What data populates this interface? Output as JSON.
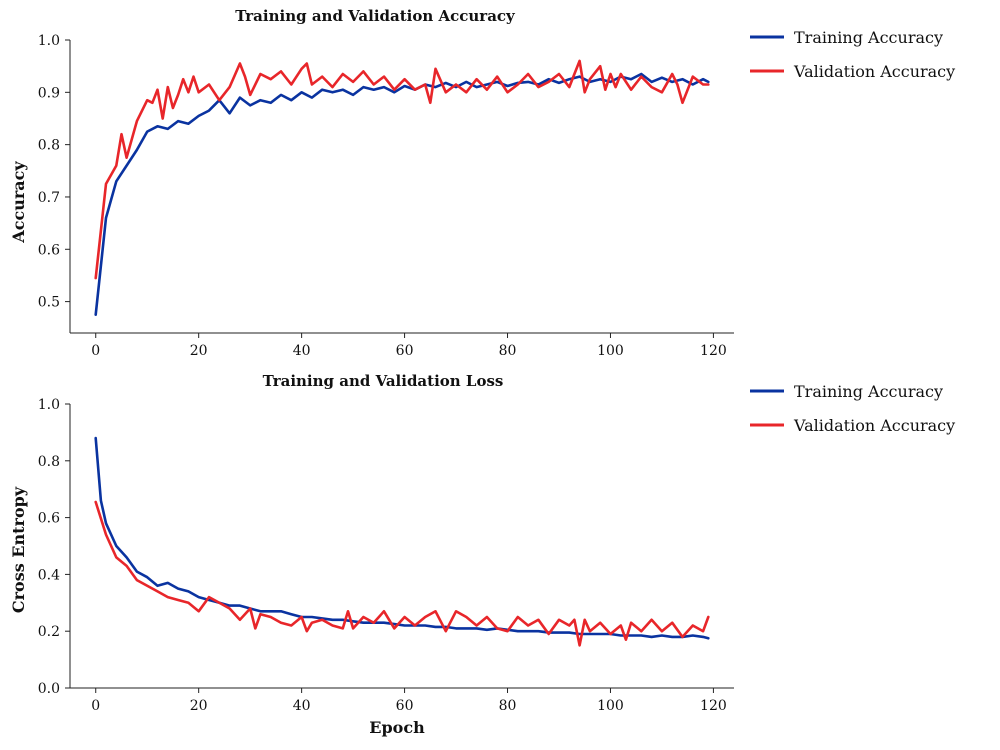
{
  "chart_data": [
    {
      "type": "line",
      "title": "Training and Validation Accuracy",
      "xlabel": "",
      "ylabel": "Accuracy",
      "xlim": [
        -5,
        124
      ],
      "ylim": [
        0.44,
        1.0
      ],
      "xticks": [
        0,
        20,
        40,
        60,
        80,
        100,
        120
      ],
      "yticks": [
        0.5,
        0.6,
        0.7,
        0.8,
        0.9,
        1.0
      ],
      "ytick_labels": [
        "0.5",
        "0.6",
        "0.7",
        "0.8",
        "0.9",
        "1.0"
      ],
      "grid": false,
      "legend": "top-right, outside plot",
      "series": [
        {
          "name": "Training Accuracy",
          "color": "#0a33a0",
          "x": [
            0,
            2,
            4,
            6,
            8,
            10,
            12,
            14,
            16,
            18,
            20,
            22,
            24,
            26,
            28,
            30,
            32,
            34,
            36,
            38,
            40,
            42,
            44,
            46,
            48,
            50,
            52,
            54,
            56,
            58,
            60,
            62,
            64,
            66,
            68,
            70,
            72,
            74,
            76,
            78,
            80,
            82,
            84,
            86,
            88,
            90,
            92,
            94,
            96,
            98,
            100,
            102,
            104,
            106,
            108,
            110,
            112,
            114,
            116,
            118,
            119
          ],
          "y": [
            0.475,
            0.66,
            0.73,
            0.76,
            0.79,
            0.825,
            0.835,
            0.83,
            0.845,
            0.84,
            0.855,
            0.865,
            0.885,
            0.86,
            0.89,
            0.875,
            0.885,
            0.88,
            0.895,
            0.885,
            0.9,
            0.89,
            0.905,
            0.9,
            0.905,
            0.895,
            0.91,
            0.905,
            0.91,
            0.9,
            0.912,
            0.905,
            0.915,
            0.91,
            0.918,
            0.91,
            0.92,
            0.91,
            0.915,
            0.92,
            0.912,
            0.918,
            0.92,
            0.915,
            0.925,
            0.918,
            0.925,
            0.93,
            0.92,
            0.925,
            0.92,
            0.93,
            0.925,
            0.935,
            0.92,
            0.928,
            0.92,
            0.925,
            0.915,
            0.925,
            0.92
          ]
        },
        {
          "name": "Validation Accuracy",
          "color": "#e8262a",
          "x": [
            0,
            2,
            4,
            5,
            6,
            8,
            10,
            11,
            12,
            13,
            14,
            15,
            16,
            17,
            18,
            19,
            20,
            22,
            24,
            26,
            28,
            29,
            30,
            32,
            34,
            36,
            38,
            40,
            41,
            42,
            44,
            46,
            48,
            50,
            52,
            54,
            56,
            58,
            60,
            62,
            64,
            65,
            66,
            68,
            70,
            72,
            74,
            76,
            78,
            80,
            82,
            84,
            86,
            88,
            90,
            92,
            93,
            94,
            95,
            96,
            98,
            99,
            100,
            101,
            102,
            104,
            106,
            108,
            110,
            112,
            113,
            114,
            116,
            118,
            119
          ],
          "y": [
            0.545,
            0.725,
            0.76,
            0.82,
            0.775,
            0.845,
            0.885,
            0.88,
            0.905,
            0.85,
            0.91,
            0.87,
            0.895,
            0.925,
            0.9,
            0.93,
            0.9,
            0.915,
            0.885,
            0.91,
            0.955,
            0.93,
            0.895,
            0.935,
            0.925,
            0.94,
            0.915,
            0.945,
            0.955,
            0.915,
            0.93,
            0.91,
            0.935,
            0.92,
            0.94,
            0.915,
            0.93,
            0.905,
            0.925,
            0.905,
            0.915,
            0.88,
            0.945,
            0.9,
            0.915,
            0.9,
            0.925,
            0.905,
            0.93,
            0.9,
            0.915,
            0.935,
            0.91,
            0.92,
            0.935,
            0.91,
            0.935,
            0.96,
            0.9,
            0.925,
            0.95,
            0.905,
            0.935,
            0.91,
            0.935,
            0.905,
            0.93,
            0.91,
            0.9,
            0.935,
            0.915,
            0.88,
            0.93,
            0.915,
            0.915
          ]
        }
      ]
    },
    {
      "type": "line",
      "title": "Training and Validation Loss",
      "xlabel": "Epoch",
      "ylabel": "Cross Entropy",
      "xlim": [
        -5,
        124
      ],
      "ylim": [
        0.0,
        1.0
      ],
      "xticks": [
        0,
        20,
        40,
        60,
        80,
        100,
        120
      ],
      "yticks": [
        0.0,
        0.2,
        0.4,
        0.6,
        0.8,
        1.0
      ],
      "ytick_labels": [
        "0.0",
        "0.2",
        "0.4",
        "0.6",
        "0.8",
        "1.0"
      ],
      "grid": false,
      "legend": "top-right, outside plot",
      "series": [
        {
          "name": "Training Accuracy",
          "color": "#0a33a0",
          "x": [
            0,
            1,
            2,
            4,
            6,
            8,
            10,
            12,
            14,
            16,
            18,
            20,
            22,
            24,
            26,
            28,
            30,
            32,
            34,
            36,
            38,
            40,
            42,
            44,
            46,
            48,
            50,
            52,
            54,
            56,
            58,
            60,
            62,
            64,
            66,
            68,
            70,
            72,
            74,
            76,
            78,
            80,
            82,
            84,
            86,
            88,
            90,
            92,
            94,
            96,
            98,
            100,
            102,
            104,
            106,
            108,
            110,
            112,
            114,
            116,
            118,
            119
          ],
          "y": [
            0.88,
            0.66,
            0.58,
            0.5,
            0.46,
            0.41,
            0.39,
            0.36,
            0.37,
            0.35,
            0.34,
            0.32,
            0.31,
            0.3,
            0.29,
            0.29,
            0.28,
            0.27,
            0.27,
            0.27,
            0.26,
            0.25,
            0.25,
            0.245,
            0.24,
            0.24,
            0.235,
            0.23,
            0.23,
            0.23,
            0.225,
            0.22,
            0.22,
            0.22,
            0.215,
            0.215,
            0.21,
            0.21,
            0.21,
            0.205,
            0.21,
            0.205,
            0.2,
            0.2,
            0.2,
            0.195,
            0.195,
            0.195,
            0.19,
            0.19,
            0.19,
            0.19,
            0.185,
            0.185,
            0.185,
            0.18,
            0.185,
            0.18,
            0.18,
            0.185,
            0.18,
            0.175
          ]
        },
        {
          "name": "Validation Accuracy",
          "color": "#e8262a",
          "x": [
            0,
            2,
            4,
            6,
            8,
            10,
            12,
            14,
            16,
            18,
            20,
            22,
            24,
            26,
            28,
            30,
            31,
            32,
            34,
            36,
            38,
            40,
            41,
            42,
            44,
            46,
            48,
            49,
            50,
            52,
            54,
            56,
            58,
            60,
            62,
            64,
            66,
            68,
            70,
            72,
            74,
            76,
            78,
            80,
            82,
            84,
            86,
            88,
            90,
            92,
            93,
            94,
            95,
            96,
            98,
            100,
            102,
            103,
            104,
            106,
            108,
            110,
            112,
            114,
            116,
            118,
            119
          ],
          "y": [
            0.655,
            0.54,
            0.46,
            0.43,
            0.38,
            0.36,
            0.34,
            0.32,
            0.31,
            0.3,
            0.27,
            0.32,
            0.3,
            0.28,
            0.24,
            0.28,
            0.21,
            0.26,
            0.25,
            0.23,
            0.22,
            0.25,
            0.2,
            0.23,
            0.24,
            0.22,
            0.21,
            0.27,
            0.21,
            0.25,
            0.23,
            0.27,
            0.21,
            0.25,
            0.22,
            0.25,
            0.27,
            0.2,
            0.27,
            0.25,
            0.22,
            0.25,
            0.21,
            0.2,
            0.25,
            0.22,
            0.24,
            0.19,
            0.24,
            0.22,
            0.24,
            0.15,
            0.24,
            0.2,
            0.23,
            0.19,
            0.22,
            0.17,
            0.23,
            0.2,
            0.24,
            0.2,
            0.23,
            0.18,
            0.22,
            0.2,
            0.25
          ]
        }
      ]
    }
  ]
}
